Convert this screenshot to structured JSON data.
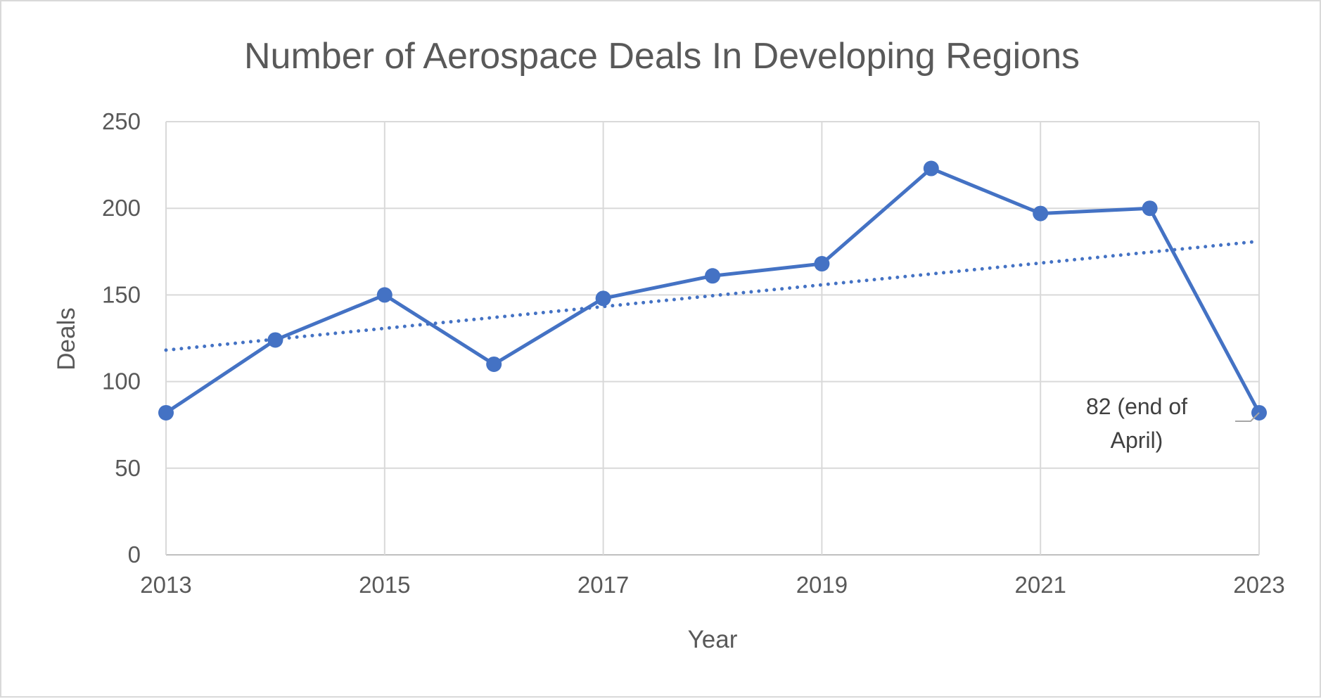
{
  "chart_data": {
    "type": "line",
    "title": "Number of Aerospace Deals In Developing Regions",
    "xlabel": "Year",
    "ylabel": "Deals",
    "x": [
      2013,
      2014,
      2015,
      2016,
      2017,
      2018,
      2019,
      2020,
      2021,
      2022,
      2023
    ],
    "series": [
      {
        "values": [
          82,
          124,
          150,
          110,
          148,
          161,
          168,
          223,
          197,
          200,
          82
        ],
        "color": "#4472C4",
        "markers": true
      }
    ],
    "trendline": {
      "type": "linear",
      "style": "dotted",
      "color": "#4472C4"
    },
    "xlim": [
      2013,
      2023
    ],
    "ylim": [
      0,
      250
    ],
    "xticks": [
      "2013",
      "2015",
      "2017",
      "2019",
      "2021",
      "2023"
    ],
    "yticks": [
      "0",
      "50",
      "100",
      "150",
      "200",
      "250"
    ],
    "grid": true,
    "legend": "none",
    "annotations": [
      {
        "x": 2023,
        "y": 82,
        "lines": [
          "82 (end of",
          "April)"
        ]
      }
    ]
  }
}
